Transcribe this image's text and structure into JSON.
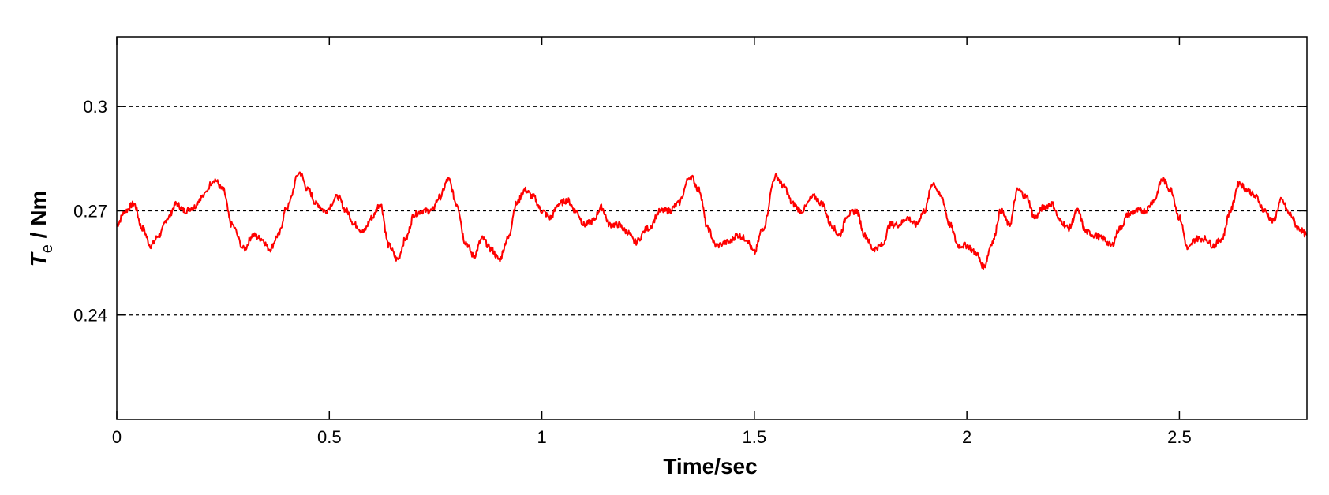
{
  "chart_data": {
    "type": "line",
    "title": "",
    "xlabel": "Time/sec",
    "ylabel_symbol": "T",
    "ylabel_subscript": "e",
    "ylabel_unit": " / Nm",
    "xlim": [
      0,
      2.8
    ],
    "ylim": [
      0.21,
      0.32
    ],
    "xticks": [
      0,
      0.5,
      1,
      1.5,
      2,
      2.5
    ],
    "xtick_labels": [
      "0",
      "0.5",
      "1",
      "1.5",
      "2",
      "2.5"
    ],
    "yticks": [
      0.24,
      0.27,
      0.3
    ],
    "ytick_labels": [
      "0.24",
      "0.27",
      "0.3"
    ],
    "grid": "horizontal dashed at y ticks",
    "series_color": "#ff0000",
    "series": [
      {
        "x": [
          0,
          0.02,
          0.04,
          0.06,
          0.08,
          0.1,
          0.12,
          0.14,
          0.16,
          0.18,
          0.2,
          0.23,
          0.25,
          0.27,
          0.3,
          0.32,
          0.34,
          0.36,
          0.38,
          0.4,
          0.43,
          0.45,
          0.47,
          0.49,
          0.52,
          0.54,
          0.56,
          0.58,
          0.6,
          0.62,
          0.64,
          0.66,
          0.68,
          0.7,
          0.72,
          0.74,
          0.76,
          0.78,
          0.8,
          0.82,
          0.84,
          0.86,
          0.88,
          0.9,
          0.92,
          0.94,
          0.96,
          0.98,
          1.0,
          1.02,
          1.04,
          1.06,
          1.08,
          1.1,
          1.12,
          1.14,
          1.16,
          1.18,
          1.2,
          1.22,
          1.25,
          1.28,
          1.3,
          1.32,
          1.35,
          1.37,
          1.39,
          1.41,
          1.44,
          1.46,
          1.48,
          1.5,
          1.52,
          1.55,
          1.57,
          1.59,
          1.61,
          1.64,
          1.66,
          1.68,
          1.7,
          1.72,
          1.74,
          1.76,
          1.78,
          1.8,
          1.82,
          1.84,
          1.86,
          1.88,
          1.9,
          1.92,
          1.94,
          1.96,
          1.98,
          2.0,
          2.02,
          2.04,
          2.06,
          2.08,
          2.1,
          2.12,
          2.14,
          2.16,
          2.18,
          2.2,
          2.22,
          2.24,
          2.26,
          2.28,
          2.3,
          2.32,
          2.34,
          2.36,
          2.38,
          2.4,
          2.42,
          2.44,
          2.46,
          2.48,
          2.5,
          2.52,
          2.54,
          2.56,
          2.58,
          2.6,
          2.62,
          2.64,
          2.66,
          2.68,
          2.7,
          2.72,
          2.74,
          2.76,
          2.78,
          2.8
        ],
        "y": [
          0.266,
          0.27,
          0.272,
          0.265,
          0.26,
          0.263,
          0.268,
          0.272,
          0.27,
          0.271,
          0.274,
          0.279,
          0.276,
          0.266,
          0.259,
          0.263,
          0.262,
          0.259,
          0.263,
          0.271,
          0.281,
          0.276,
          0.272,
          0.27,
          0.274,
          0.27,
          0.266,
          0.264,
          0.268,
          0.272,
          0.26,
          0.256,
          0.262,
          0.269,
          0.27,
          0.27,
          0.274,
          0.279,
          0.272,
          0.261,
          0.257,
          0.262,
          0.259,
          0.256,
          0.262,
          0.272,
          0.276,
          0.274,
          0.27,
          0.268,
          0.272,
          0.273,
          0.27,
          0.266,
          0.267,
          0.271,
          0.266,
          0.266,
          0.264,
          0.261,
          0.265,
          0.27,
          0.27,
          0.272,
          0.28,
          0.276,
          0.265,
          0.26,
          0.261,
          0.263,
          0.262,
          0.258,
          0.265,
          0.28,
          0.277,
          0.272,
          0.27,
          0.274,
          0.272,
          0.266,
          0.263,
          0.269,
          0.27,
          0.263,
          0.259,
          0.26,
          0.266,
          0.266,
          0.268,
          0.266,
          0.27,
          0.278,
          0.274,
          0.266,
          0.26,
          0.26,
          0.258,
          0.254,
          0.261,
          0.27,
          0.266,
          0.276,
          0.274,
          0.268,
          0.271,
          0.272,
          0.267,
          0.265,
          0.27,
          0.264,
          0.263,
          0.262,
          0.26,
          0.265,
          0.269,
          0.27,
          0.27,
          0.273,
          0.279,
          0.276,
          0.268,
          0.259,
          0.262,
          0.262,
          0.26,
          0.262,
          0.27,
          0.278,
          0.276,
          0.274,
          0.27,
          0.267,
          0.273,
          0.269,
          0.265,
          0.263
        ]
      }
    ]
  }
}
